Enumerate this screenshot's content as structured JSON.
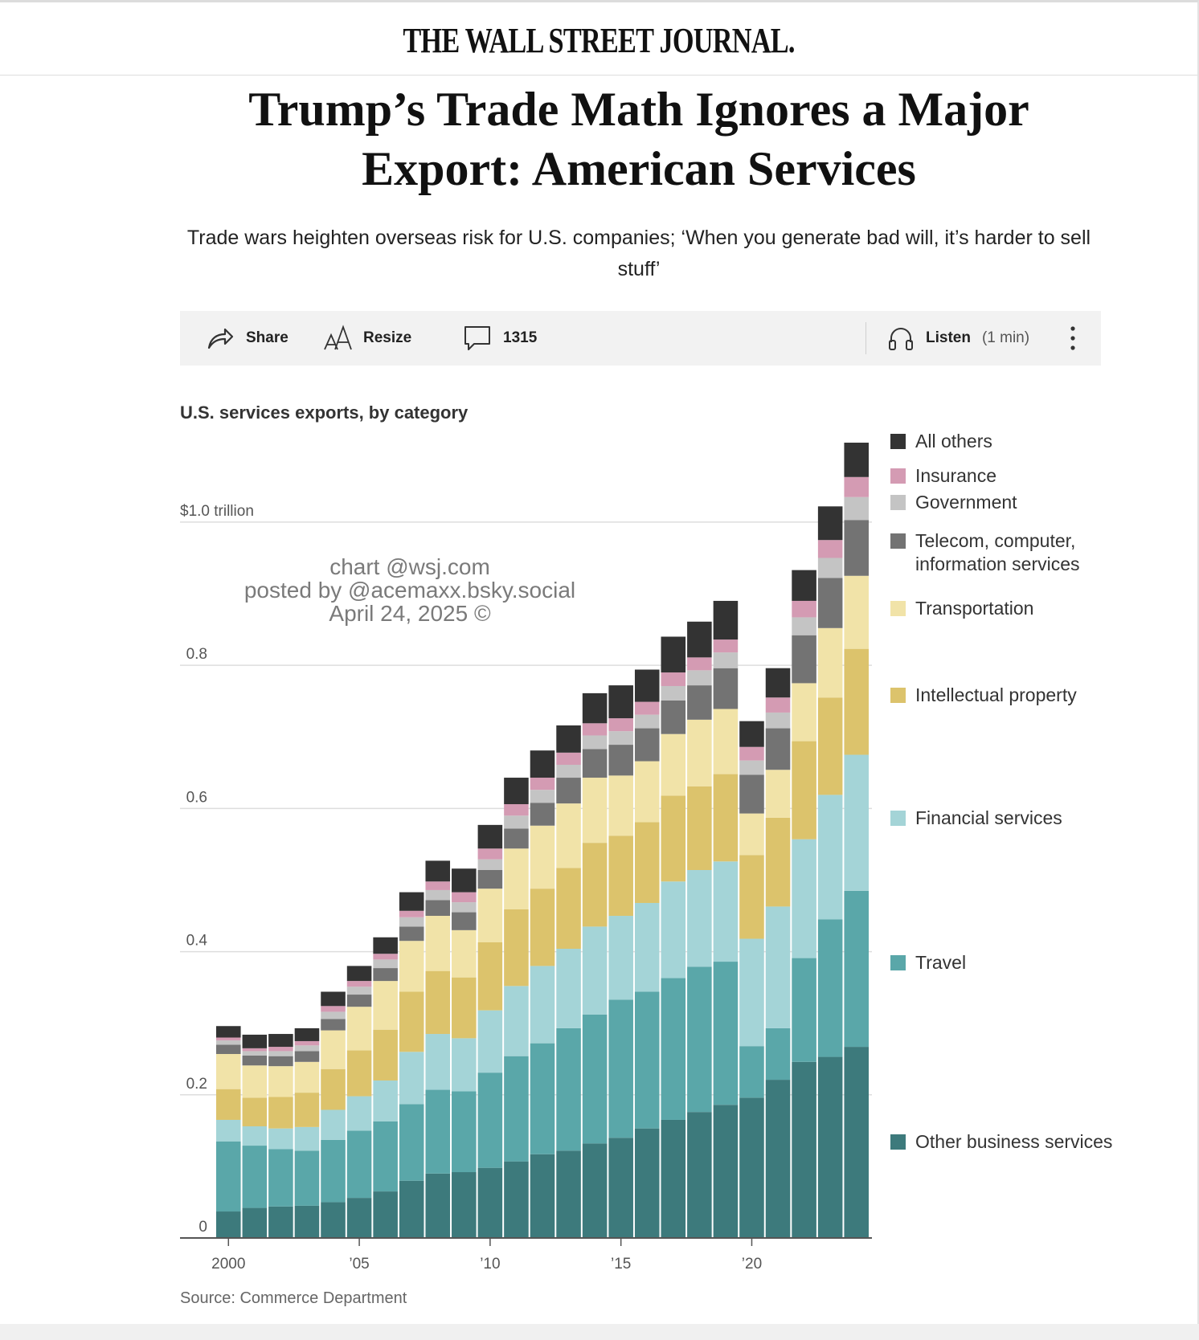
{
  "masthead": "THE WALL STREET JOURNAL.",
  "headline": "Trump’s Trade Math Ignores a Major Export: American Services",
  "dek": "Trade wars heighten overseas risk for U.S. companies; ‘When you generate bad will, it’s harder to sell stuff’",
  "toolbar": {
    "share": "Share",
    "resize": "Resize",
    "comments": "1315",
    "listen": "Listen",
    "listen_duration": "(1 min)"
  },
  "watermark": {
    "line1": "chart @wsj.com",
    "line2": "posted by @acemaxx.bsky.social",
    "line3": "April 24, 2025 ©"
  },
  "source": "Source: Commerce Department",
  "chart_data": {
    "type": "bar",
    "stacked": true,
    "title": "U.S. services exports, by category",
    "x": [
      2000,
      2001,
      2002,
      2003,
      2004,
      2005,
      2006,
      2007,
      2008,
      2009,
      2010,
      2011,
      2012,
      2013,
      2014,
      2015,
      2016,
      2017,
      2018,
      2019,
      2020,
      2021,
      2022,
      2023,
      2024
    ],
    "x_ticks": [
      "2000",
      "’05",
      "’10",
      "’15",
      "’20"
    ],
    "y_ticks": [
      "0",
      "0.2",
      "0.4",
      "0.6",
      "0.8",
      "$1.0 trillion"
    ],
    "ylim": [
      0,
      1.12
    ],
    "grid": true,
    "legend_position": "right",
    "series": [
      {
        "name": "Other business services",
        "color": "#3d7a7c",
        "values": [
          0.037,
          0.042,
          0.044,
          0.045,
          0.05,
          0.056,
          0.065,
          0.08,
          0.09,
          0.092,
          0.098,
          0.107,
          0.117,
          0.122,
          0.132,
          0.14,
          0.153,
          0.165,
          0.176,
          0.186,
          0.196,
          0.221,
          0.246,
          0.253,
          0.267
        ]
      },
      {
        "name": "Travel",
        "color": "#5aa7a9",
        "values": [
          0.098,
          0.087,
          0.08,
          0.077,
          0.087,
          0.094,
          0.098,
          0.107,
          0.117,
          0.113,
          0.133,
          0.147,
          0.155,
          0.171,
          0.18,
          0.193,
          0.191,
          0.198,
          0.203,
          0.2,
          0.072,
          0.072,
          0.145,
          0.192,
          0.218
        ]
      },
      {
        "name": "Financial services",
        "color": "#a4d4d7",
        "values": [
          0.03,
          0.027,
          0.029,
          0.033,
          0.042,
          0.048,
          0.057,
          0.073,
          0.078,
          0.074,
          0.087,
          0.098,
          0.108,
          0.111,
          0.123,
          0.117,
          0.124,
          0.135,
          0.135,
          0.14,
          0.15,
          0.17,
          0.166,
          0.174,
          0.19
        ]
      },
      {
        "name": "Intellectual property",
        "color": "#dcc36c",
        "values": [
          0.043,
          0.04,
          0.044,
          0.048,
          0.057,
          0.064,
          0.071,
          0.084,
          0.088,
          0.085,
          0.095,
          0.107,
          0.108,
          0.113,
          0.117,
          0.112,
          0.113,
          0.12,
          0.117,
          0.122,
          0.117,
          0.124,
          0.137,
          0.136,
          0.148
        ]
      },
      {
        "name": "Transportation",
        "color": "#f1e3a8",
        "values": [
          0.049,
          0.045,
          0.043,
          0.043,
          0.054,
          0.061,
          0.068,
          0.071,
          0.077,
          0.066,
          0.075,
          0.085,
          0.088,
          0.09,
          0.091,
          0.084,
          0.085,
          0.086,
          0.093,
          0.091,
          0.058,
          0.067,
          0.081,
          0.097,
          0.102
        ]
      },
      {
        "name": "Telecom, computer, information services",
        "color": "#737373",
        "values": [
          0.013,
          0.014,
          0.014,
          0.015,
          0.016,
          0.017,
          0.018,
          0.02,
          0.022,
          0.025,
          0.026,
          0.028,
          0.032,
          0.036,
          0.04,
          0.043,
          0.046,
          0.047,
          0.048,
          0.057,
          0.054,
          0.058,
          0.067,
          0.07,
          0.078
        ]
      },
      {
        "name": "Government",
        "color": "#c4c4c4",
        "values": [
          0.006,
          0.006,
          0.007,
          0.008,
          0.01,
          0.011,
          0.012,
          0.013,
          0.014,
          0.014,
          0.015,
          0.018,
          0.018,
          0.018,
          0.019,
          0.019,
          0.019,
          0.02,
          0.021,
          0.022,
          0.02,
          0.022,
          0.025,
          0.028,
          0.032
        ]
      },
      {
        "name": "Insurance",
        "color": "#d49bb3",
        "values": [
          0.004,
          0.004,
          0.006,
          0.006,
          0.008,
          0.008,
          0.008,
          0.009,
          0.012,
          0.014,
          0.015,
          0.016,
          0.017,
          0.017,
          0.017,
          0.018,
          0.018,
          0.019,
          0.018,
          0.018,
          0.019,
          0.021,
          0.023,
          0.025,
          0.028
        ]
      },
      {
        "name": "All others",
        "color": "#333333",
        "values": [
          0.016,
          0.019,
          0.018,
          0.018,
          0.02,
          0.021,
          0.023,
          0.026,
          0.029,
          0.033,
          0.033,
          0.037,
          0.038,
          0.038,
          0.042,
          0.046,
          0.045,
          0.05,
          0.05,
          0.054,
          0.036,
          0.041,
          0.043,
          0.047,
          0.048
        ]
      }
    ]
  }
}
